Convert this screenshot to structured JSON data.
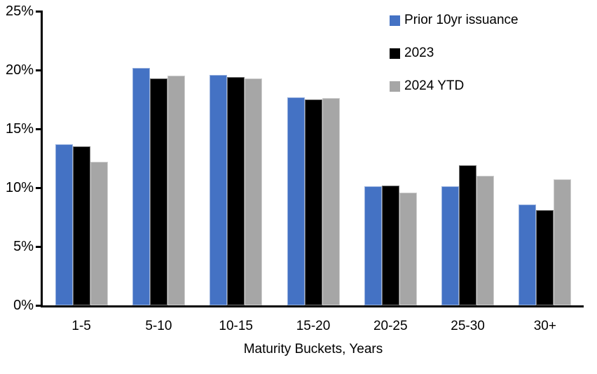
{
  "chart_data": {
    "type": "bar",
    "title": "",
    "xlabel": "Maturity Buckets, Years",
    "ylabel": "",
    "categories": [
      "1-5",
      "5-10",
      "10-15",
      "15-20",
      "20-25",
      "25-30",
      "30+"
    ],
    "series": [
      {
        "name": "Prior 10yr issuance",
        "color": "#4472C4",
        "values": [
          13.7,
          20.2,
          19.6,
          17.7,
          10.1,
          10.1,
          8.6
        ]
      },
      {
        "name": "2023",
        "color": "#000000",
        "values": [
          13.5,
          19.3,
          19.4,
          17.5,
          10.2,
          11.9,
          8.1
        ]
      },
      {
        "name": "2024 YTD",
        "color": "#A6A6A6",
        "values": [
          12.2,
          19.5,
          19.3,
          17.6,
          9.6,
          11.0,
          10.7
        ]
      }
    ],
    "ylim": [
      0,
      25
    ],
    "ytick_step": 5,
    "ytick_labels": [
      "0%",
      "5%",
      "10%",
      "15%",
      "20%",
      "25%"
    ],
    "legend_position": "top-right",
    "grid": false,
    "axis_color": "#000000",
    "background_color": "#FFFFFF"
  }
}
